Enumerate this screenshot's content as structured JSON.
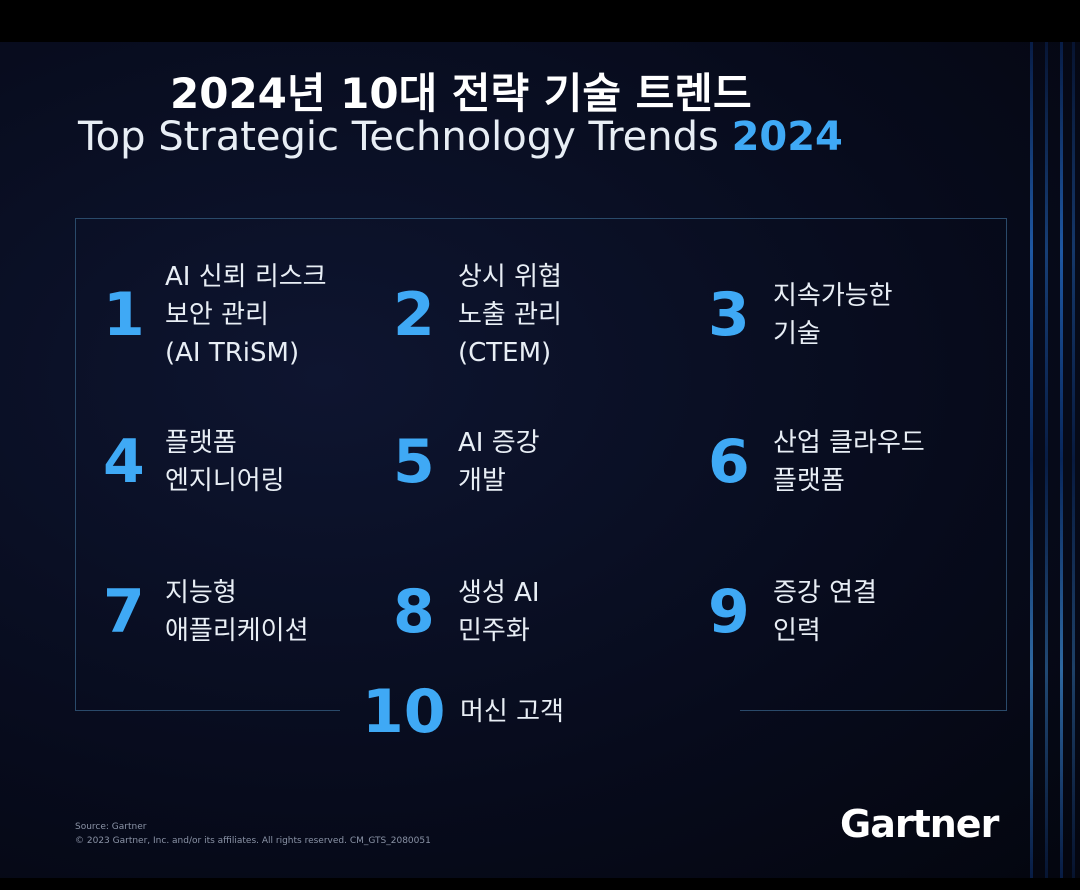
{
  "header": {
    "title_ko": "2024년 10대 전략 기술 트렌드",
    "title_en": "Top Strategic Technology Trends",
    "title_year": "2024"
  },
  "trends": [
    {
      "number": "1",
      "lines": [
        "AI 신뢰 리스크",
        "보안 관리",
        "(AI TRiSM)"
      ]
    },
    {
      "number": "2",
      "lines": [
        "상시 위협",
        "노출 관리",
        "(CTEM)"
      ]
    },
    {
      "number": "3",
      "lines": [
        "지속가능한",
        "기술"
      ]
    },
    {
      "number": "4",
      "lines": [
        "플랫폼",
        "엔지니어링"
      ]
    },
    {
      "number": "5",
      "lines": [
        "AI 증강",
        "개발"
      ]
    },
    {
      "number": "6",
      "lines": [
        "산업 클라우드",
        "플랫폼"
      ]
    },
    {
      "number": "7",
      "lines": [
        "지능형",
        "애플리케이션"
      ]
    },
    {
      "number": "8",
      "lines": [
        "생성 AI",
        "민주화"
      ]
    },
    {
      "number": "9",
      "lines": [
        "증강 연결",
        "인력"
      ]
    },
    {
      "number": "10",
      "lines": [
        "머신 고객"
      ]
    }
  ],
  "footer": {
    "source": "Source: Gartner",
    "copyright": "© 2023 Gartner, Inc. and/or its affiliates. All rights reserved. CM_GTS_2080051",
    "logo": "Gartner"
  }
}
